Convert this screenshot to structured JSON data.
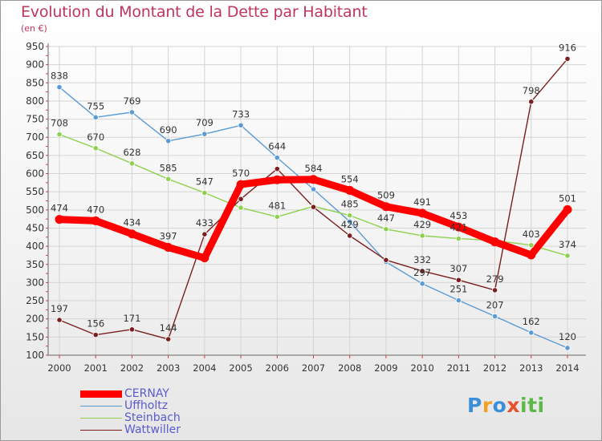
{
  "header": {
    "title": "Evolution du Montant de la Dette par Habitant",
    "subtitle": "(en €)"
  },
  "branding": {
    "logo_text": "Proxiti"
  },
  "chart_data": {
    "type": "line",
    "title": "Evolution du Montant de la Dette par Habitant",
    "subtitle": "(en €)",
    "xlabel": "",
    "ylabel": "",
    "x": [
      2000,
      2001,
      2002,
      2003,
      2004,
      2005,
      2006,
      2007,
      2008,
      2009,
      2010,
      2011,
      2012,
      2013,
      2014
    ],
    "y_ticks": [
      100,
      150,
      200,
      250,
      300,
      350,
      400,
      450,
      500,
      550,
      600,
      650,
      700,
      750,
      800,
      850,
      900,
      950
    ],
    "ylim": [
      100,
      950
    ],
    "grid": true,
    "legend_position": "bottom-left",
    "series": [
      {
        "name": "Uffholtz",
        "color": "#5b9bd5",
        "values": [
          838,
          755,
          769,
          690,
          709,
          733,
          644,
          557,
          468,
          357,
          297,
          251,
          207,
          162,
          120
        ],
        "labels": [
          "838",
          "755",
          "769",
          "690",
          "709",
          "733",
          "644",
          "",
          "",
          "",
          "297",
          "251",
          "207",
          "162",
          "120"
        ]
      },
      {
        "name": "Steinbach",
        "color": "#8fd14f",
        "values": [
          708,
          670,
          628,
          585,
          547,
          506,
          481,
          510,
          485,
          447,
          429,
          421,
          416,
          403,
          374
        ],
        "labels": [
          "708",
          "670",
          "628",
          "585",
          "547",
          "",
          "481",
          "",
          "485",
          "447",
          "429",
          "421",
          "",
          "403",
          "374"
        ]
      },
      {
        "name": "Wattwiller",
        "color": "#7b1e1e",
        "values": [
          197,
          156,
          171,
          144,
          433,
          530,
          613,
          508,
          429,
          362,
          332,
          307,
          279,
          798,
          916
        ],
        "labels": [
          "197",
          "156",
          "171",
          "144",
          "433",
          "",
          "",
          "",
          "429",
          "",
          "332",
          "307",
          "279",
          "798",
          "916"
        ]
      },
      {
        "name": "CERNAY",
        "color": "#ff0000",
        "values": [
          474,
          470,
          434,
          397,
          368,
          570,
          583,
          584,
          554,
          509,
          491,
          453,
          412,
          376,
          501
        ],
        "labels": [
          "474",
          "470",
          "434",
          "397",
          "",
          "570",
          "",
          "584",
          "554",
          "509",
          "491",
          "453",
          "",
          "",
          "501"
        ]
      }
    ]
  }
}
